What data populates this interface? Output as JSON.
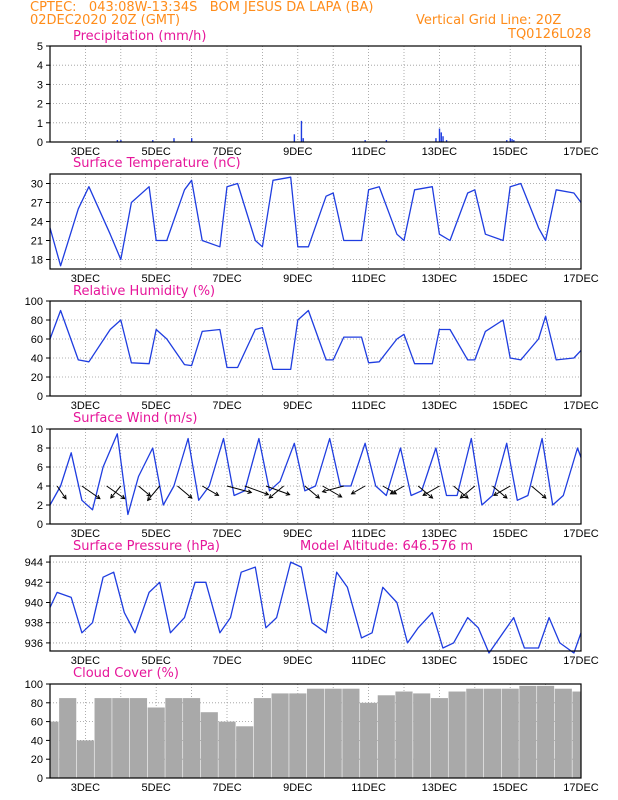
{
  "header": {
    "line1": "CPTEC:   043:08W-13:34S   BOM JESUS DA LAPA (BA)",
    "line2_left": "02DEC2020 20Z (GMT)",
    "line2_right": "Vertical Grid Line: 20Z",
    "line3_right": "TQ0126L028"
  },
  "colors": {
    "header": "#ff8c1a",
    "title": "#e6169a",
    "line": "#1f3de0",
    "cloud": "#a9a9a9"
  },
  "x_ticks": [
    "3DEC",
    "5DEC",
    "7DEC",
    "9DEC",
    "11DEC",
    "13DEC",
    "15DEC",
    "17DEC"
  ],
  "chart_data": [
    {
      "id": "precip",
      "type": "bar",
      "title": "Precipitation (mm/h)",
      "ylim": [
        0,
        5
      ],
      "yticks": [
        "0",
        "1",
        "2",
        "3",
        "4",
        "5"
      ],
      "x_range": [
        "02DEC2020 20Z",
        "17DEC2020 20Z"
      ],
      "days": [
        3.9,
        4.0,
        4.9,
        5.5,
        6.0,
        8.9,
        9.1,
        9.15,
        10.9,
        11.5,
        12.9,
        13.0,
        13.05,
        13.1,
        13.2,
        14.9,
        15.0,
        15.05,
        15.1
      ],
      "values": [
        0.1,
        0.1,
        0.1,
        0.2,
        0.2,
        0.4,
        1.1,
        0.2,
        0.1,
        0.1,
        0.2,
        0.7,
        0.5,
        0.3,
        0.1,
        0.1,
        0.2,
        0.15,
        0.1
      ]
    },
    {
      "id": "temp",
      "type": "line",
      "title": "Surface Temperature (nC)",
      "ylim": [
        16.5,
        31.5
      ],
      "yticks": [
        "18",
        "21",
        "24",
        "27",
        "30"
      ],
      "days": [
        2.0,
        2.3,
        2.8,
        3.1,
        3.7,
        4.0,
        4.3,
        4.8,
        5.0,
        5.3,
        5.8,
        6.0,
        6.3,
        6.8,
        7.0,
        7.3,
        7.8,
        8.0,
        8.3,
        8.8,
        9.0,
        9.3,
        9.8,
        10.0,
        10.3,
        10.8,
        11.0,
        11.3,
        11.8,
        12.0,
        12.3,
        12.8,
        13.0,
        13.3,
        13.8,
        14.0,
        14.3,
        14.8,
        15.0,
        15.3,
        15.8,
        16.0,
        16.3,
        16.8,
        17.0
      ],
      "values": [
        23,
        17,
        26,
        29.5,
        22,
        18,
        27,
        29.5,
        21,
        21,
        29,
        30.5,
        21,
        20,
        29.5,
        30,
        21,
        20,
        30.5,
        31,
        20,
        20,
        28,
        28.5,
        21,
        21,
        29,
        29.5,
        22,
        21,
        29,
        29.5,
        22,
        21,
        28.5,
        29,
        22,
        21,
        29.5,
        30,
        23,
        21,
        29,
        28.5,
        27
      ]
    },
    {
      "id": "rh",
      "type": "line",
      "title": "Relative Humidity (%)",
      "ylim": [
        0,
        100
      ],
      "yticks": [
        "0",
        "20",
        "40",
        "60",
        "80",
        "100"
      ],
      "days": [
        2.0,
        2.3,
        2.8,
        3.1,
        3.7,
        4.0,
        4.3,
        4.8,
        5.0,
        5.3,
        5.8,
        6.0,
        6.3,
        6.8,
        7.0,
        7.3,
        7.8,
        8.0,
        8.3,
        8.8,
        9.0,
        9.3,
        9.8,
        10.0,
        10.3,
        10.8,
        11.0,
        11.3,
        11.8,
        12.0,
        12.3,
        12.8,
        13.0,
        13.3,
        13.8,
        14.0,
        14.3,
        14.8,
        15.0,
        15.3,
        15.8,
        16.0,
        16.3,
        16.8,
        17.0
      ],
      "values": [
        60,
        90,
        38,
        36,
        70,
        80,
        35,
        34,
        70,
        60,
        33,
        32,
        68,
        70,
        30,
        30,
        70,
        72,
        28,
        28,
        80,
        90,
        38,
        38,
        62,
        62,
        35,
        36,
        60,
        65,
        34,
        34,
        70,
        70,
        38,
        38,
        68,
        80,
        40,
        38,
        60,
        84,
        38,
        40,
        48
      ]
    },
    {
      "id": "wind",
      "type": "line",
      "title": "Surface Wind (m/s)",
      "ylim": [
        0,
        10
      ],
      "yticks": [
        "0",
        "2",
        "4",
        "6",
        "8",
        "10"
      ],
      "days": [
        2.0,
        2.3,
        2.6,
        2.9,
        3.2,
        3.5,
        3.9,
        4.2,
        4.5,
        4.9,
        5.2,
        5.5,
        5.9,
        6.2,
        6.5,
        6.9,
        7.2,
        7.5,
        7.9,
        8.2,
        8.5,
        8.9,
        9.2,
        9.5,
        9.9,
        10.2,
        10.5,
        10.9,
        11.2,
        11.5,
        11.9,
        12.2,
        12.5,
        12.9,
        13.2,
        13.5,
        13.9,
        14.2,
        14.5,
        14.9,
        15.2,
        15.5,
        15.9,
        16.2,
        16.5,
        16.9,
        17.0
      ],
      "values": [
        2,
        4,
        7.5,
        2.5,
        1.5,
        6,
        9.5,
        1,
        5,
        8,
        2,
        4,
        9,
        2.5,
        4,
        9,
        3,
        3.5,
        9,
        3.5,
        4.5,
        8.5,
        3.5,
        4,
        9,
        4,
        4,
        8.5,
        4,
        3,
        8,
        3,
        3.5,
        8,
        3,
        3,
        9,
        2,
        3,
        8.5,
        2.5,
        3,
        9,
        2,
        3,
        8,
        7
      ],
      "arrows": {
        "days": [
          2.2,
          2.9,
          3.6,
          4.0,
          4.5,
          5.1,
          5.6,
          6.3,
          7.0,
          7.5,
          8.1,
          8.6,
          9.2,
          9.7,
          10.3,
          10.9,
          11.4,
          12.0,
          12.4,
          13.0,
          13.4,
          14.0,
          14.5,
          15.0,
          15.6
        ],
        "speeds": [
          3,
          5,
          5,
          3,
          3,
          4,
          4,
          4,
          6,
          6,
          6,
          4,
          4,
          5,
          5,
          3,
          3,
          3,
          4,
          4,
          4,
          4,
          4,
          4,
          4
        ],
        "dirs_deg": [
          55,
          35,
          35,
          130,
          40,
          130,
          40,
          30,
          15,
          20,
          20,
          140,
          40,
          30,
          165,
          150,
          30,
          150,
          40,
          150,
          40,
          140,
          40,
          150,
          40
        ]
      }
    },
    {
      "id": "pres",
      "type": "line",
      "title": "Surface Pressure (hPa)",
      "subtitle": "Model Altitude: 646.576 m",
      "ylim": [
        935.2,
        944.6
      ],
      "yticks": [
        "936",
        "938",
        "940",
        "942",
        "944"
      ],
      "days": [
        2.0,
        2.2,
        2.6,
        2.9,
        3.2,
        3.5,
        3.8,
        4.1,
        4.4,
        4.8,
        5.1,
        5.4,
        5.8,
        6.1,
        6.4,
        6.8,
        7.1,
        7.4,
        7.8,
        8.1,
        8.4,
        8.8,
        9.1,
        9.4,
        9.8,
        10.1,
        10.4,
        10.8,
        11.1,
        11.4,
        11.8,
        12.1,
        12.4,
        12.8,
        13.1,
        13.4,
        13.8,
        14.1,
        14.4,
        14.8,
        15.1,
        15.4,
        15.8,
        16.1,
        16.4,
        16.8,
        17.0
      ],
      "values": [
        939.5,
        941,
        940.5,
        937,
        938,
        942.5,
        943,
        939,
        937,
        941,
        942,
        937,
        938.5,
        942,
        942,
        937,
        938.5,
        943,
        943.5,
        937.5,
        938.5,
        944,
        943.5,
        938,
        937,
        943,
        941.5,
        936.5,
        937,
        941.5,
        940,
        936,
        937.5,
        939,
        935.5,
        936,
        938.5,
        937.5,
        935,
        937,
        938.5,
        935.5,
        935.5,
        938.5,
        936,
        935,
        937
      ]
    },
    {
      "id": "cloud",
      "type": "bar",
      "title": "Cloud Cover (%)",
      "ylim": [
        0,
        100
      ],
      "yticks": [
        "0",
        "20",
        "40",
        "60",
        "80",
        "100"
      ],
      "days": [
        2.0,
        2.5,
        3.0,
        3.5,
        4.0,
        4.5,
        5.0,
        5.5,
        6.0,
        6.5,
        7.0,
        7.5,
        8.0,
        8.5,
        9.0,
        9.5,
        10.0,
        10.5,
        11.0,
        11.5,
        12.0,
        12.5,
        13.0,
        13.5,
        14.0,
        14.5,
        15.0,
        15.5,
        16.0,
        16.5,
        17.0
      ],
      "values": [
        60,
        85,
        40,
        85,
        85,
        85,
        75,
        85,
        85,
        70,
        60,
        55,
        85,
        90,
        90,
        95,
        95,
        95,
        80,
        88,
        92,
        90,
        85,
        92,
        95,
        95,
        95,
        98,
        98,
        95,
        92
      ]
    }
  ]
}
